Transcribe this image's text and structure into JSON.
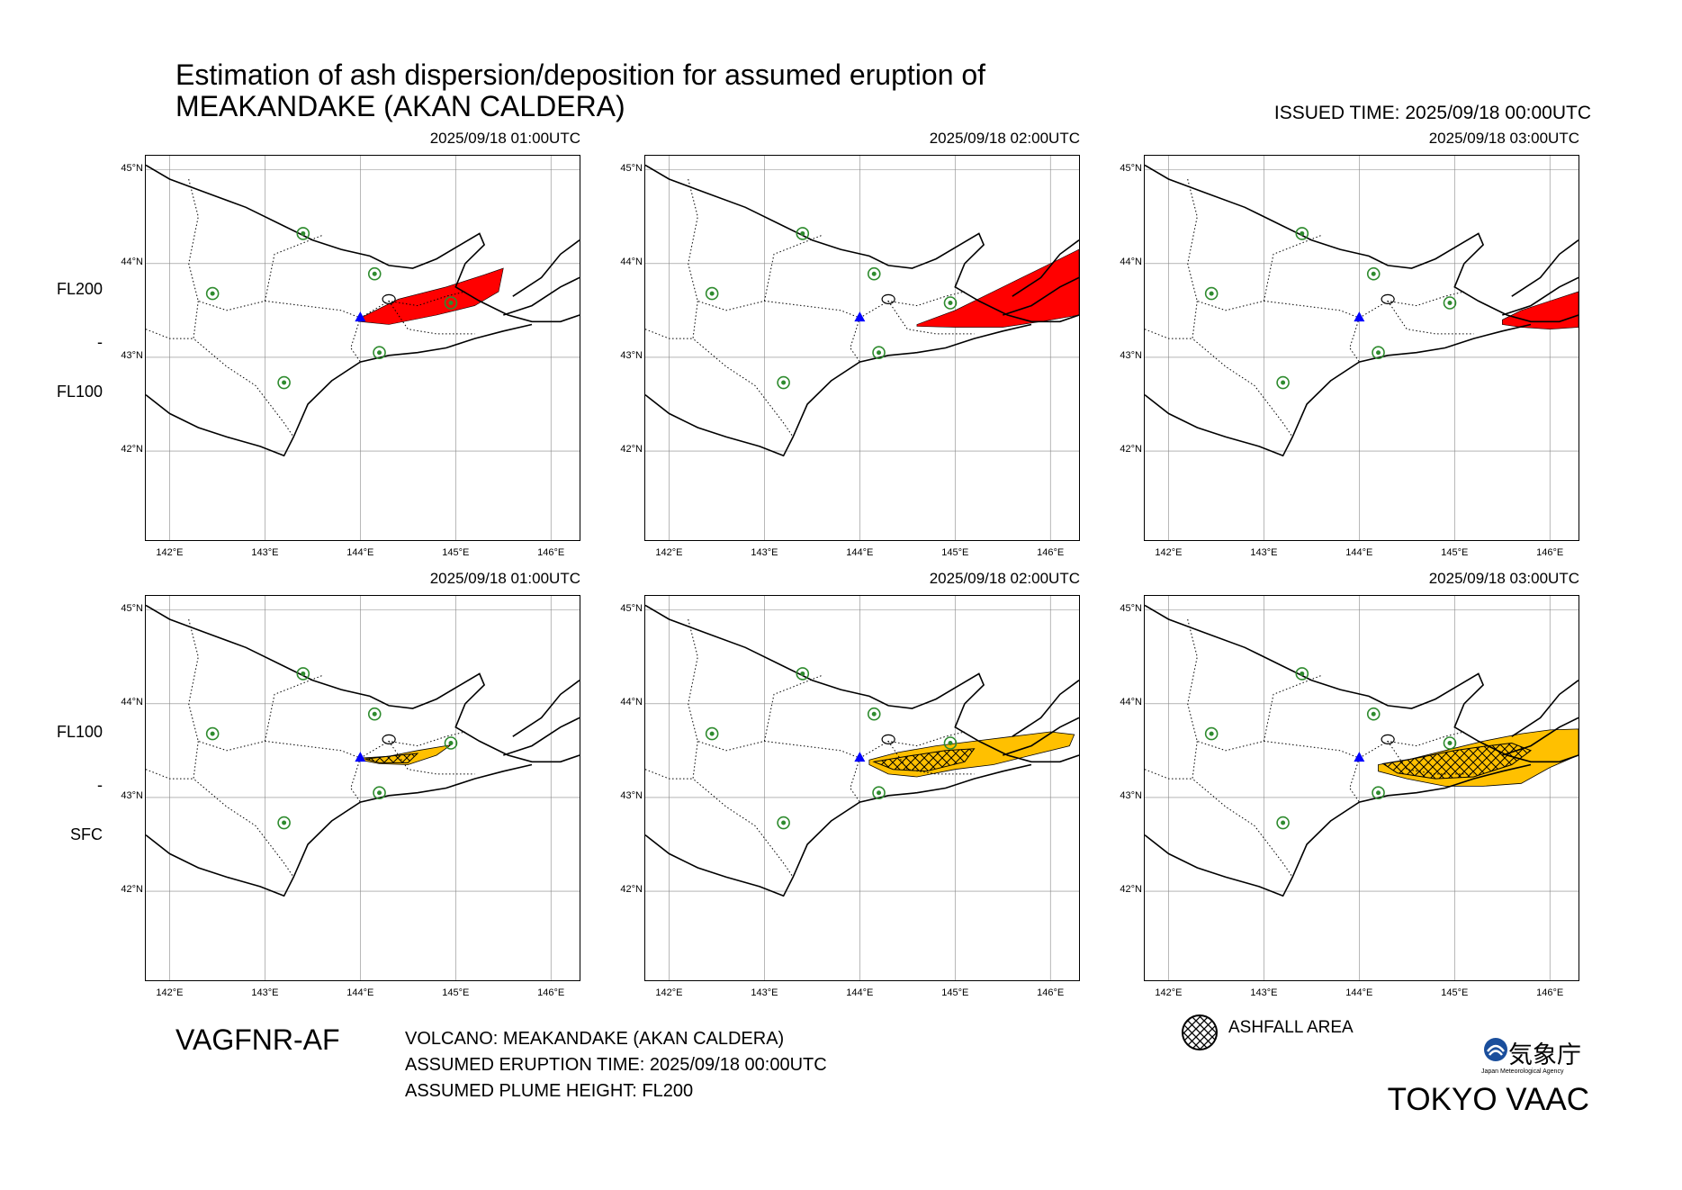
{
  "header": {
    "title_line1": "Estimation of ash dispersion/deposition for assumed eruption of",
    "title_line2": "MEAKANDAKE (AKAN CALDERA)",
    "issued": "ISSUED TIME: 2025/09/18 00:00UTC"
  },
  "rows": [
    {
      "upper": "FL200",
      "dash": "-",
      "lower": "FL100"
    },
    {
      "upper": "FL100",
      "dash": "-",
      "lower": "SFC"
    }
  ],
  "panels": [
    {
      "time": "2025/09/18 01:00UTC",
      "layer": "FL200-FL100",
      "plume": "red"
    },
    {
      "time": "2025/09/18 02:00UTC",
      "layer": "FL200-FL100",
      "plume": "red"
    },
    {
      "time": "2025/09/18 03:00UTC",
      "layer": "FL200-FL100",
      "plume": "red"
    },
    {
      "time": "2025/09/18 01:00UTC",
      "layer": "FL100-SFC",
      "plume": "orange",
      "ashfall": true
    },
    {
      "time": "2025/09/18 02:00UTC",
      "layer": "FL100-SFC",
      "plume": "orange",
      "ashfall": true
    },
    {
      "time": "2025/09/18 03:00UTC",
      "layer": "FL100-SFC",
      "plume": "orange",
      "ashfall": true
    }
  ],
  "axes": {
    "lon_labels": [
      "142°E",
      "143°E",
      "144°E",
      "145°E",
      "146°E"
    ],
    "lat_labels": [
      "45°N",
      "44°N",
      "43°N",
      "42°N"
    ]
  },
  "colors": {
    "upper_ash": "#ff0000",
    "lower_ash": "#ffc000",
    "volcano_marker": "#0000ff",
    "city_marker": "#2e8b2e"
  },
  "footer": {
    "product": "VAGFNR-AF",
    "volcano": "VOLCANO: MEAKANDAKE (AKAN CALDERA)",
    "eruption_time": "ASSUMED ERUPTION TIME: 2025/09/18 00:00UTC",
    "plume_height": "ASSUMED PLUME HEIGHT: FL200",
    "legend_ashfall": "ASHFALL AREA",
    "agency": "TOKYO VAAC",
    "jma_name": "気象庁",
    "jma_sub": "Japan Meteorological Agency"
  }
}
